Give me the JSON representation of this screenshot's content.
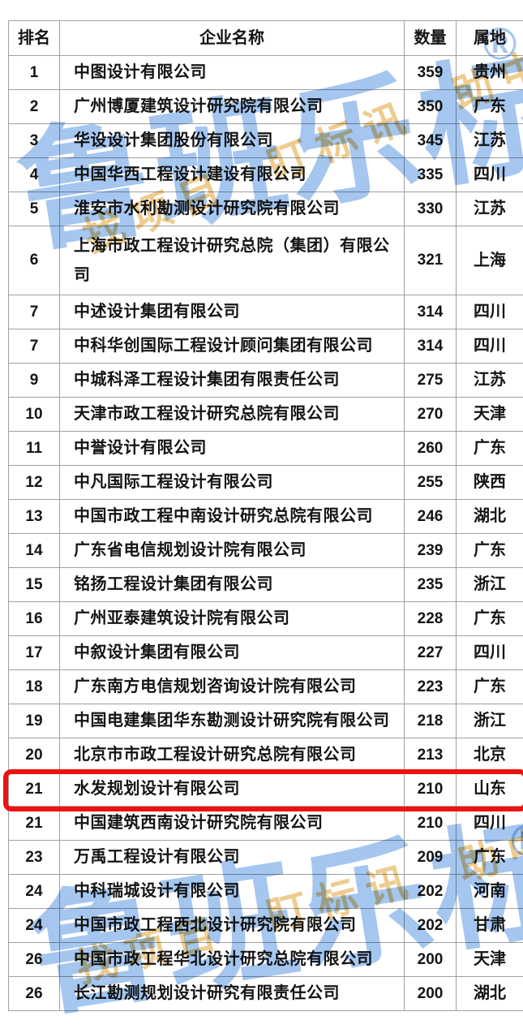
{
  "table": {
    "headers": {
      "rank": "排名",
      "name": "企业名称",
      "count": "数量",
      "region": "属地"
    },
    "rows": [
      {
        "rank": "1",
        "name": "中图设计有限公司",
        "count": "359",
        "region": "贵州",
        "highlighted": false,
        "tall": false
      },
      {
        "rank": "2",
        "name": "广州博厦建筑设计研究院有限公司",
        "count": "350",
        "region": "广东",
        "highlighted": false,
        "tall": false
      },
      {
        "rank": "3",
        "name": "华设设计集团股份有限公司",
        "count": "345",
        "region": "江苏",
        "highlighted": false,
        "tall": false
      },
      {
        "rank": "4",
        "name": "中国华西工程设计建设有限公司",
        "count": "335",
        "region": "四川",
        "highlighted": false,
        "tall": false
      },
      {
        "rank": "5",
        "name": "淮安市水利勘测设计研究院有限公司",
        "count": "330",
        "region": "江苏",
        "highlighted": false,
        "tall": false
      },
      {
        "rank": "6",
        "name": "上海市政工程设计研究总院（集团）有限公司",
        "count": "321",
        "region": "上海",
        "highlighted": false,
        "tall": true
      },
      {
        "rank": "7",
        "name": "中述设计集团有限公司",
        "count": "314",
        "region": "四川",
        "highlighted": false,
        "tall": false
      },
      {
        "rank": "7",
        "name": "中科华创国际工程设计顾问集团有限公司",
        "count": "314",
        "region": "四川",
        "highlighted": false,
        "tall": false
      },
      {
        "rank": "9",
        "name": "中城科泽工程设计集团有限责任公司",
        "count": "275",
        "region": "江苏",
        "highlighted": false,
        "tall": false
      },
      {
        "rank": "10",
        "name": "天津市政工程设计研究总院有限公司",
        "count": "270",
        "region": "天津",
        "highlighted": false,
        "tall": false
      },
      {
        "rank": "11",
        "name": "中誉设计有限公司",
        "count": "260",
        "region": "广东",
        "highlighted": false,
        "tall": false
      },
      {
        "rank": "12",
        "name": "中凡国际工程设计有限公司",
        "count": "255",
        "region": "陕西",
        "highlighted": false,
        "tall": false
      },
      {
        "rank": "13",
        "name": "中国市政工程中南设计研究总院有限公司",
        "count": "246",
        "region": "湖北",
        "highlighted": false,
        "tall": false
      },
      {
        "rank": "14",
        "name": "广东省电信规划设计院有限公司",
        "count": "239",
        "region": "广东",
        "highlighted": false,
        "tall": false
      },
      {
        "rank": "15",
        "name": "铭扬工程设计集团有限公司",
        "count": "235",
        "region": "浙江",
        "highlighted": false,
        "tall": false
      },
      {
        "rank": "16",
        "name": "广州亚泰建筑设计院有限公司",
        "count": "228",
        "region": "广东",
        "highlighted": false,
        "tall": false
      },
      {
        "rank": "17",
        "name": "中叙设计集团有限公司",
        "count": "227",
        "region": "四川",
        "highlighted": false,
        "tall": false
      },
      {
        "rank": "18",
        "name": "广东南方电信规划咨询设计院有限公司",
        "count": "223",
        "region": "广东",
        "highlighted": false,
        "tall": false
      },
      {
        "rank": "19",
        "name": "中国电建集团华东勘测设计研究院有限公司",
        "count": "218",
        "region": "浙江",
        "highlighted": false,
        "tall": false
      },
      {
        "rank": "20",
        "name": "北京市市政工程设计研究总院有限公司",
        "count": "213",
        "region": "北京",
        "highlighted": false,
        "tall": false
      },
      {
        "rank": "21",
        "name": "水发规划设计有限公司",
        "count": "210",
        "region": "山东",
        "highlighted": true,
        "tall": false
      },
      {
        "rank": "21",
        "name": "中国建筑西南设计研究院有限公司",
        "count": "210",
        "region": "四川",
        "highlighted": false,
        "tall": false
      },
      {
        "rank": "23",
        "name": "万禹工程设计有限公司",
        "count": "209",
        "region": "广东",
        "highlighted": false,
        "tall": false
      },
      {
        "rank": "24",
        "name": "中科瑞城设计有限公司",
        "count": "202",
        "region": "河南",
        "highlighted": false,
        "tall": false
      },
      {
        "rank": "24",
        "name": "中国市政工程西北设计研究院有限公司",
        "count": "202",
        "region": "甘肃",
        "highlighted": false,
        "tall": false
      },
      {
        "rank": "26",
        "name": "中国市政工程华北设计研究总院有限公司",
        "count": "200",
        "region": "天津",
        "highlighted": false,
        "tall": false
      },
      {
        "rank": "26",
        "name": "长江勘测规划设计研究有限责任公司",
        "count": "200",
        "region": "湖北",
        "highlighted": false,
        "tall": false
      }
    ]
  },
  "watermark": {
    "brand": "鲁班乐标",
    "registered": "®",
    "slogan": "找项目 盯标讯 助中标",
    "blue_color": "#a5c6ef",
    "yellow_color": "#eabf74"
  },
  "highlight_box": {
    "color": "#ee1111",
    "target_rank": "21",
    "target_name": "水发规划设计有限公司"
  }
}
